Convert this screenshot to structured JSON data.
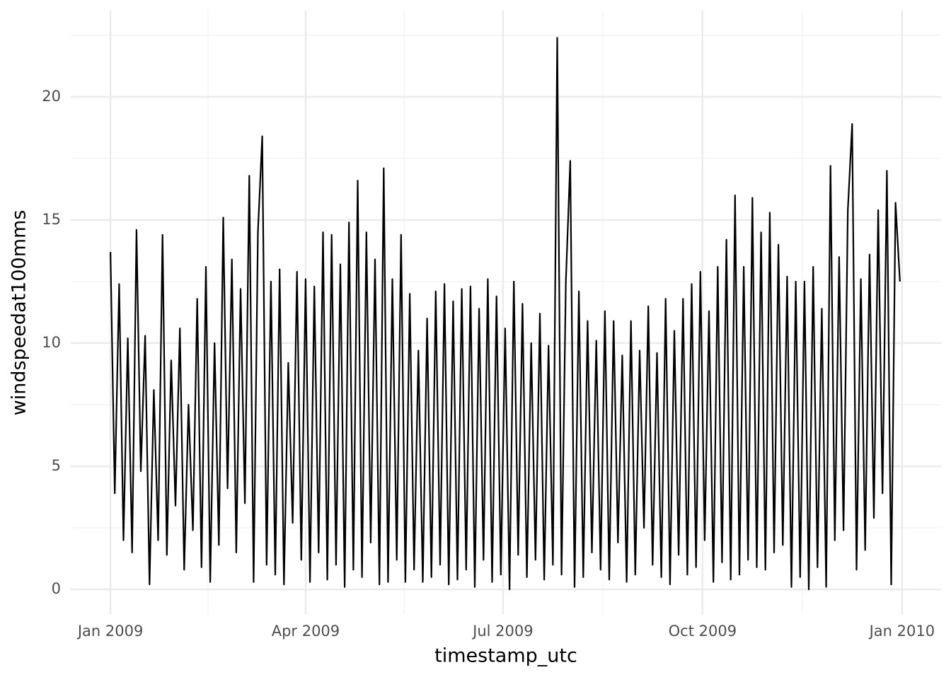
{
  "chart_data": {
    "type": "line",
    "x_label": "timestamp_utc",
    "y_label": "windspeedat100mms",
    "x": [
      0,
      2,
      4,
      6,
      8,
      10,
      12,
      14,
      16,
      18,
      20,
      22,
      24,
      26,
      28,
      30,
      32,
      34,
      36,
      38,
      40,
      42,
      44,
      46,
      48,
      50,
      52,
      54,
      56,
      58,
      60,
      62,
      64,
      66,
      68,
      70,
      72,
      74,
      76,
      78,
      80,
      82,
      84,
      86,
      88,
      90,
      92,
      94,
      96,
      98,
      100,
      102,
      104,
      106,
      108,
      110,
      112,
      114,
      116,
      118,
      120,
      122,
      124,
      126,
      128,
      130,
      132,
      134,
      136,
      138,
      140,
      142,
      144,
      146,
      148,
      150,
      152,
      154,
      156,
      158,
      160,
      162,
      164,
      166,
      168,
      170,
      172,
      174,
      176,
      178,
      180,
      182,
      184,
      186,
      188,
      190,
      192,
      194,
      196,
      198,
      200,
      202,
      204,
      206,
      208,
      210,
      212,
      214,
      216,
      218,
      220,
      222,
      224,
      226,
      228,
      230,
      232,
      234,
      236,
      238,
      240,
      242,
      244,
      246,
      248,
      250,
      252,
      254,
      256,
      258,
      260,
      262,
      264,
      266,
      268,
      270,
      272,
      274,
      276,
      278,
      280,
      282,
      284,
      286,
      288,
      290,
      292,
      294,
      296,
      298,
      300,
      302,
      304,
      306,
      308,
      310,
      312,
      314,
      316,
      318,
      320,
      322,
      324,
      326,
      328,
      330,
      332,
      334,
      336,
      338,
      340,
      342,
      344,
      346,
      348,
      350,
      352,
      354,
      356,
      358,
      360,
      362,
      364
    ],
    "series": [
      {
        "name": "windspeedat100mms",
        "color": "#000000",
        "values": [
          13.7,
          3.9,
          12.4,
          2.0,
          10.2,
          1.5,
          14.6,
          4.8,
          10.3,
          0.2,
          8.1,
          2.0,
          14.4,
          1.4,
          9.3,
          3.4,
          10.6,
          0.8,
          7.5,
          2.4,
          11.8,
          0.9,
          13.1,
          0.3,
          10.0,
          1.8,
          15.1,
          4.1,
          13.4,
          1.5,
          12.2,
          3.5,
          16.8,
          0.3,
          14.5,
          18.4,
          1.0,
          12.5,
          0.6,
          13.0,
          0.2,
          9.2,
          2.7,
          12.9,
          1.2,
          12.6,
          0.3,
          12.3,
          1.5,
          14.5,
          0.4,
          14.4,
          1.0,
          13.2,
          0.1,
          14.9,
          0.8,
          16.6,
          0.5,
          14.5,
          1.9,
          13.4,
          0.2,
          17.1,
          0.3,
          12.6,
          1.2,
          14.4,
          0.3,
          12.0,
          0.8,
          9.7,
          0.3,
          11.0,
          0.5,
          12.1,
          1.0,
          12.4,
          0.2,
          11.7,
          0.4,
          12.2,
          0.8,
          12.3,
          0.1,
          11.4,
          1.2,
          12.6,
          0.3,
          11.9,
          0.6,
          10.6,
          0.0,
          12.5,
          1.4,
          11.6,
          0.5,
          10.0,
          1.2,
          11.2,
          0.4,
          9.9,
          1.0,
          22.4,
          0.6,
          12.5,
          17.4,
          0.1,
          12.1,
          0.5,
          10.9,
          1.5,
          10.1,
          0.8,
          11.3,
          0.4,
          10.9,
          1.9,
          9.5,
          0.3,
          10.9,
          0.6,
          9.7,
          2.5,
          11.5,
          1.0,
          9.6,
          0.5,
          11.8,
          0.2,
          10.5,
          1.4,
          11.8,
          0.6,
          12.4,
          0.9,
          12.9,
          2.0,
          11.3,
          0.3,
          13.1,
          1.1,
          14.2,
          0.4,
          16.0,
          0.6,
          13.1,
          1.2,
          15.9,
          0.9,
          14.5,
          0.8,
          15.3,
          1.5,
          14.0,
          1.8,
          12.7,
          0.1,
          12.5,
          0.5,
          12.5,
          0.0,
          13.1,
          0.9,
          11.4,
          0.1,
          17.2,
          2.0,
          13.5,
          2.4,
          15.4,
          18.9,
          0.8,
          12.6,
          1.6,
          13.6,
          2.9,
          15.4,
          3.9,
          17.0,
          0.2,
          15.7,
          12.5
        ]
      }
    ],
    "xlim": [
      -18.3,
      383
    ],
    "xticks": [
      {
        "value": 0,
        "label": "Jan 2009"
      },
      {
        "value": 90,
        "label": "Apr 2009"
      },
      {
        "value": 181,
        "label": "Jul 2009"
      },
      {
        "value": 273,
        "label": "Oct 2009"
      },
      {
        "value": 365,
        "label": "Jan 2010"
      }
    ],
    "xminorticks": [
      45,
      135.5,
      227,
      319
    ],
    "ylim": [
      -1.0,
      23.5
    ],
    "yticks": [
      0,
      5,
      10,
      15,
      20
    ],
    "yminorticks": [
      2.5,
      7.5,
      12.5,
      17.5,
      22.5
    ],
    "grid": true
  }
}
